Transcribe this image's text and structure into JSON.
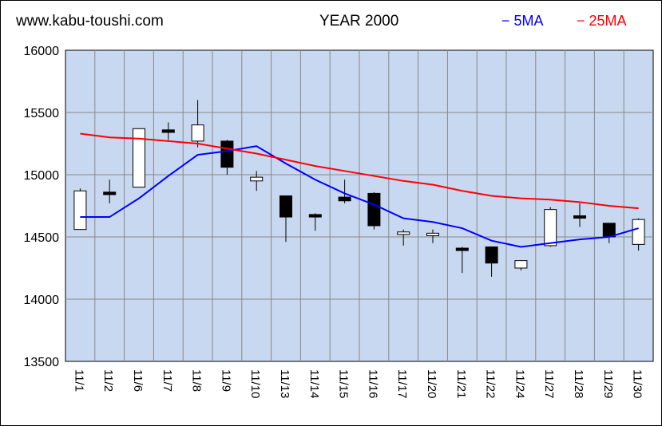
{
  "header": {
    "site": "www.kabu-toushi.com",
    "title": "YEAR 2000"
  },
  "colors": {
    "plot_bg": "#c8d8f0",
    "grid": "#888888",
    "ma5": "#0000ff",
    "ma25": "#ff0000",
    "up_candle": "#ffffff",
    "down_candle": "#000000"
  },
  "chart_data": {
    "type": "candlestick",
    "title": "YEAR 2000",
    "ylim": [
      13500,
      16000
    ],
    "yticks": [
      13500,
      14000,
      14500,
      15000,
      15500,
      16000
    ],
    "grid": true,
    "legend_position": "top-right",
    "categories": [
      "11/1",
      "11/2",
      "11/6",
      "11/7",
      "11/8",
      "11/9",
      "11/10",
      "11/13",
      "11/14",
      "11/15",
      "11/16",
      "11/17",
      "11/20",
      "11/21",
      "11/22",
      "11/24",
      "11/27",
      "11/28",
      "11/29",
      "11/30"
    ],
    "ohlc": [
      {
        "open": 14560,
        "high": 14890,
        "low": 14560,
        "close": 14870
      },
      {
        "open": 14860,
        "high": 14960,
        "low": 14770,
        "close": 14840
      },
      {
        "open": 14900,
        "high": 15370,
        "low": 14900,
        "close": 15370
      },
      {
        "open": 15360,
        "high": 15420,
        "low": 15280,
        "close": 15340
      },
      {
        "open": 15270,
        "high": 15600,
        "low": 15220,
        "close": 15400
      },
      {
        "open": 15270,
        "high": 15280,
        "low": 15000,
        "close": 15060
      },
      {
        "open": 14950,
        "high": 15030,
        "low": 14870,
        "close": 14980
      },
      {
        "open": 14830,
        "high": 14830,
        "low": 14460,
        "close": 14660
      },
      {
        "open": 14680,
        "high": 14690,
        "low": 14550,
        "close": 14660
      },
      {
        "open": 14820,
        "high": 14960,
        "low": 14770,
        "close": 14790
      },
      {
        "open": 14850,
        "high": 14860,
        "low": 14560,
        "close": 14590
      },
      {
        "open": 14520,
        "high": 14560,
        "low": 14430,
        "close": 14540
      },
      {
        "open": 14510,
        "high": 14560,
        "low": 14450,
        "close": 14530
      },
      {
        "open": 14410,
        "high": 14420,
        "low": 14210,
        "close": 14400
      },
      {
        "open": 14420,
        "high": 14420,
        "low": 14180,
        "close": 14290
      },
      {
        "open": 14250,
        "high": 14310,
        "low": 14230,
        "close": 14310
      },
      {
        "open": 14430,
        "high": 14740,
        "low": 14420,
        "close": 14720
      },
      {
        "open": 14670,
        "high": 14770,
        "low": 14580,
        "close": 14660
      },
      {
        "open": 14610,
        "high": 14610,
        "low": 14450,
        "close": 14500
      },
      {
        "open": 14440,
        "high": 14650,
        "low": 14390,
        "close": 14640
      }
    ],
    "series": [
      {
        "name": "5MA",
        "values": [
          14660,
          14660,
          14810,
          14990,
          15160,
          15190,
          15230,
          15090,
          14960,
          14850,
          14760,
          14650,
          14620,
          14570,
          14470,
          14420,
          14450,
          14480,
          14500,
          14570
        ]
      },
      {
        "name": "25MA",
        "values": [
          15330,
          15300,
          15290,
          15270,
          15250,
          15210,
          15170,
          15120,
          15070,
          15030,
          14990,
          14950,
          14920,
          14870,
          14830,
          14810,
          14800,
          14780,
          14750,
          14730
        ]
      }
    ]
  }
}
